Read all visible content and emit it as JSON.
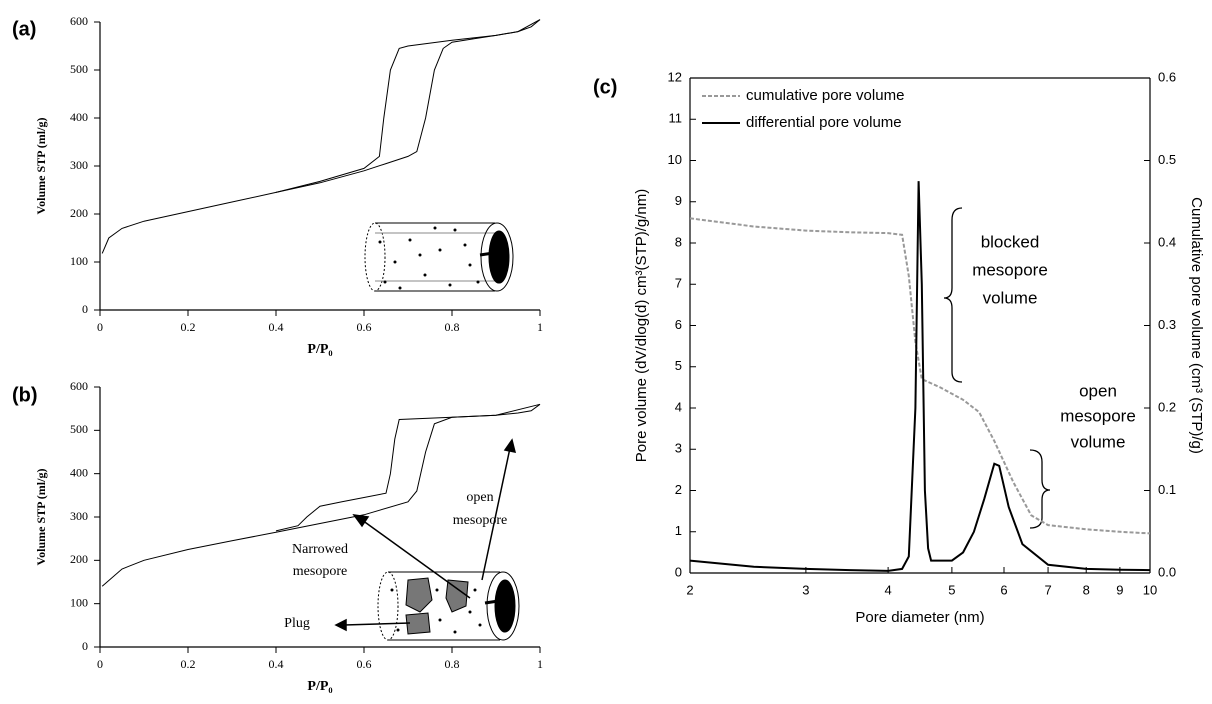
{
  "chart_data": [
    {
      "type": "line",
      "panel_label": "(a)",
      "x_label": "P/P₀",
      "y_label": "Volume STP (ml/g)",
      "xlim": [
        0,
        1
      ],
      "xticks": [
        0,
        0.2,
        0.4,
        0.6,
        0.8,
        1
      ],
      "ylim": [
        0,
        600
      ],
      "yticks": [
        0,
        100,
        200,
        300,
        400,
        500,
        600
      ],
      "grid": false,
      "series": [
        {
          "color": "#000000",
          "x": [
            0.005,
            0.02,
            0.05,
            0.1,
            0.2,
            0.3,
            0.4,
            0.5,
            0.6,
            0.65,
            0.7,
            0.72,
            0.74,
            0.76,
            0.78,
            0.8,
            0.85,
            0.9,
            0.95,
            0.98,
            1.0
          ],
          "values": [
            118,
            150,
            170,
            185,
            205,
            225,
            245,
            265,
            290,
            305,
            320,
            330,
            400,
            500,
            545,
            558,
            565,
            572,
            580,
            590,
            605
          ]
        },
        {
          "color": "#000000",
          "x": [
            1.0,
            0.95,
            0.9,
            0.8,
            0.7,
            0.68,
            0.66,
            0.645,
            0.635,
            0.6,
            0.5,
            0.4
          ],
          "values": [
            605,
            580,
            572,
            562,
            550,
            545,
            500,
            400,
            320,
            295,
            268,
            245
          ]
        }
      ],
      "annotations": []
    },
    {
      "type": "line",
      "panel_label": "(b)",
      "x_label": "P/P₀",
      "y_label": "Volume STP (ml/g)",
      "xlim": [
        0,
        1
      ],
      "xticks": [
        0,
        0.2,
        0.4,
        0.6,
        0.8,
        1
      ],
      "ylim": [
        0,
        600
      ],
      "yticks": [
        0,
        100,
        200,
        300,
        400,
        500,
        600
      ],
      "grid": false,
      "series": [
        {
          "color": "#000000",
          "x": [
            0.005,
            0.05,
            0.1,
            0.2,
            0.3,
            0.4,
            0.5,
            0.6,
            0.7,
            0.72,
            0.74,
            0.76,
            0.8,
            0.9,
            0.95,
            0.98,
            1.0
          ],
          "values": [
            140,
            180,
            200,
            225,
            245,
            265,
            285,
            305,
            335,
            360,
            450,
            515,
            530,
            535,
            540,
            545,
            560
          ]
        },
        {
          "color": "#000000",
          "x": [
            1.0,
            0.9,
            0.8,
            0.68,
            0.67,
            0.66,
            0.65,
            0.6,
            0.55,
            0.5,
            0.47,
            0.45,
            0.4
          ],
          "values": [
            560,
            535,
            530,
            525,
            480,
            400,
            355,
            345,
            335,
            325,
            300,
            280,
            268
          ]
        }
      ],
      "annotations": [
        "open",
        "mesopore",
        "Narrowed",
        "mesopore",
        "Plug"
      ]
    },
    {
      "type": "line",
      "panel_label": "(c)",
      "x_label": "Pore diameter (nm)",
      "y_label": "Pore volume (dV/dlog(d) cm³(STP)/g/nm)",
      "y2_label": "Cumulative pore volume (cm³ (STP)/g)",
      "log_x": true,
      "legend": "top-left",
      "grid": false,
      "xlim": [
        2,
        10
      ],
      "xticks": [
        2,
        3,
        4,
        5,
        6,
        7,
        8,
        9,
        10
      ],
      "ylim": [
        0,
        12
      ],
      "yticks": [
        0,
        1,
        2,
        3,
        4,
        5,
        6,
        7,
        8,
        9,
        10,
        11,
        12
      ],
      "y2lim": [
        0,
        0.6
      ],
      "y2ticks": [
        {
          "value": 0,
          "label": "0.0"
        },
        0.1,
        0.2,
        0.3,
        0.4,
        0.5,
        0.6
      ],
      "series": [
        {
          "name": "cumulative pore volume",
          "color": "#999999",
          "line_style": "dashed",
          "axis": "y2",
          "x": [
            2,
            2.5,
            3,
            3.5,
            4,
            4.2,
            4.3,
            4.4,
            4.5,
            4.8,
            5.2,
            5.5,
            5.8,
            6.2,
            6.6,
            7,
            8,
            9,
            10
          ],
          "values": [
            0.43,
            0.42,
            0.415,
            0.413,
            0.412,
            0.41,
            0.36,
            0.28,
            0.235,
            0.225,
            0.21,
            0.195,
            0.16,
            0.11,
            0.07,
            0.058,
            0.053,
            0.05,
            0.048
          ]
        },
        {
          "name": "differential pore volume",
          "color": "#000000",
          "line_style": "solid",
          "x": [
            2,
            2.5,
            3,
            3.5,
            4,
            4.2,
            4.3,
            4.4,
            4.45,
            4.5,
            4.55,
            4.6,
            4.65,
            5,
            5.2,
            5.4,
            5.6,
            5.8,
            5.9,
            6.1,
            6.4,
            7,
            8,
            9,
            10
          ],
          "values": [
            0.3,
            0.15,
            0.1,
            0.07,
            0.05,
            0.1,
            0.4,
            4,
            9.5,
            7,
            2,
            0.6,
            0.3,
            0.3,
            0.5,
            1.0,
            1.8,
            2.65,
            2.6,
            1.6,
            0.7,
            0.2,
            0.1,
            0.08,
            0.07
          ]
        }
      ],
      "annotations": [
        "blocked",
        "mesopore",
        "volume",
        "open",
        "mesopore",
        "volume"
      ]
    }
  ]
}
